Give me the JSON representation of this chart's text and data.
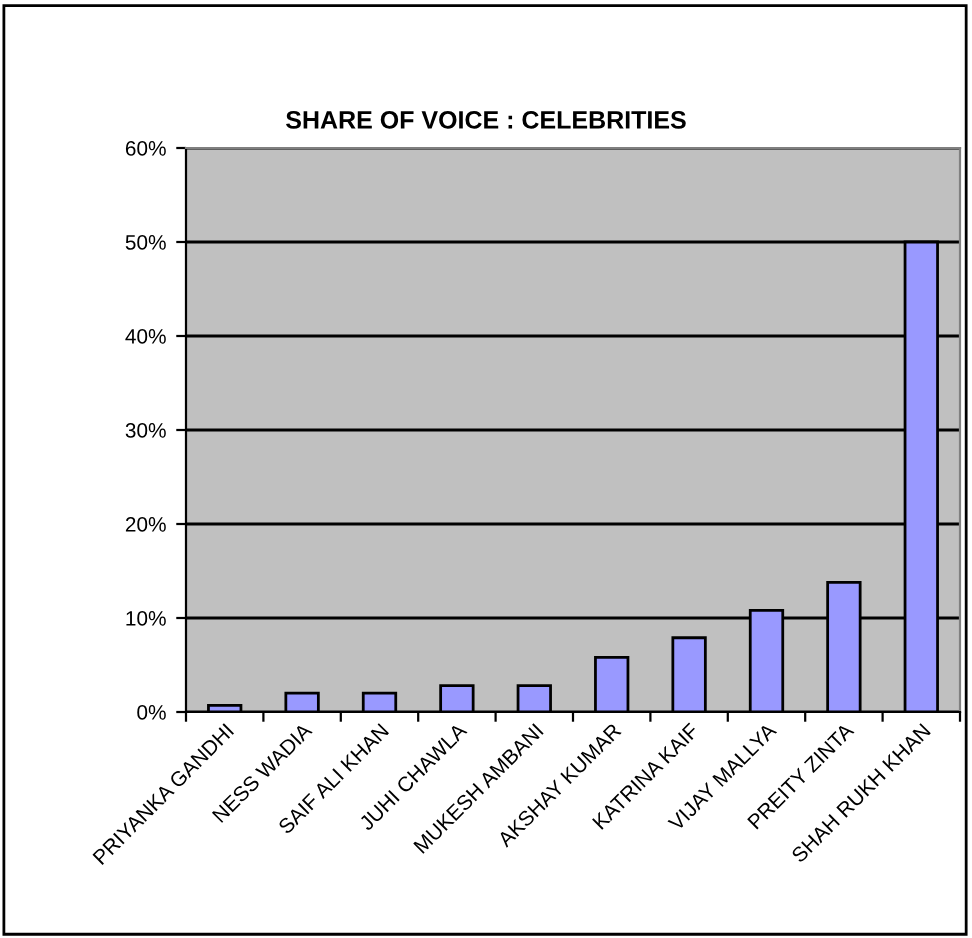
{
  "chart_data": {
    "type": "bar",
    "title": "SHARE OF VOICE : CELEBRITIES",
    "categories": [
      "PRIYANKA GANDHI",
      "NESS WADIA",
      "SAIF ALI KHAN",
      "JUHI CHAWLA",
      "MUKESH AMBANI",
      "AKSHAY KUMAR",
      "KATRINA KAIF",
      "VIJAY MALLYA",
      "PREITY ZINTA",
      "SHAH RUKH KHAN"
    ],
    "values": [
      0.7,
      2.0,
      2.0,
      2.8,
      2.8,
      5.8,
      7.9,
      10.8,
      13.8,
      50
    ],
    "color": "#9999ff",
    "ylim": [
      0,
      60
    ],
    "yticks": [
      {
        "value": 0,
        "label": "0%"
      },
      {
        "value": 10,
        "label": "10%"
      },
      {
        "value": 20,
        "label": "20%"
      },
      {
        "value": 30,
        "label": "30%"
      },
      {
        "value": 40,
        "label": "40%"
      },
      {
        "value": 50,
        "label": "50%"
      },
      {
        "value": 60,
        "label": "60%"
      }
    ],
    "grid": "y",
    "legend": false
  }
}
